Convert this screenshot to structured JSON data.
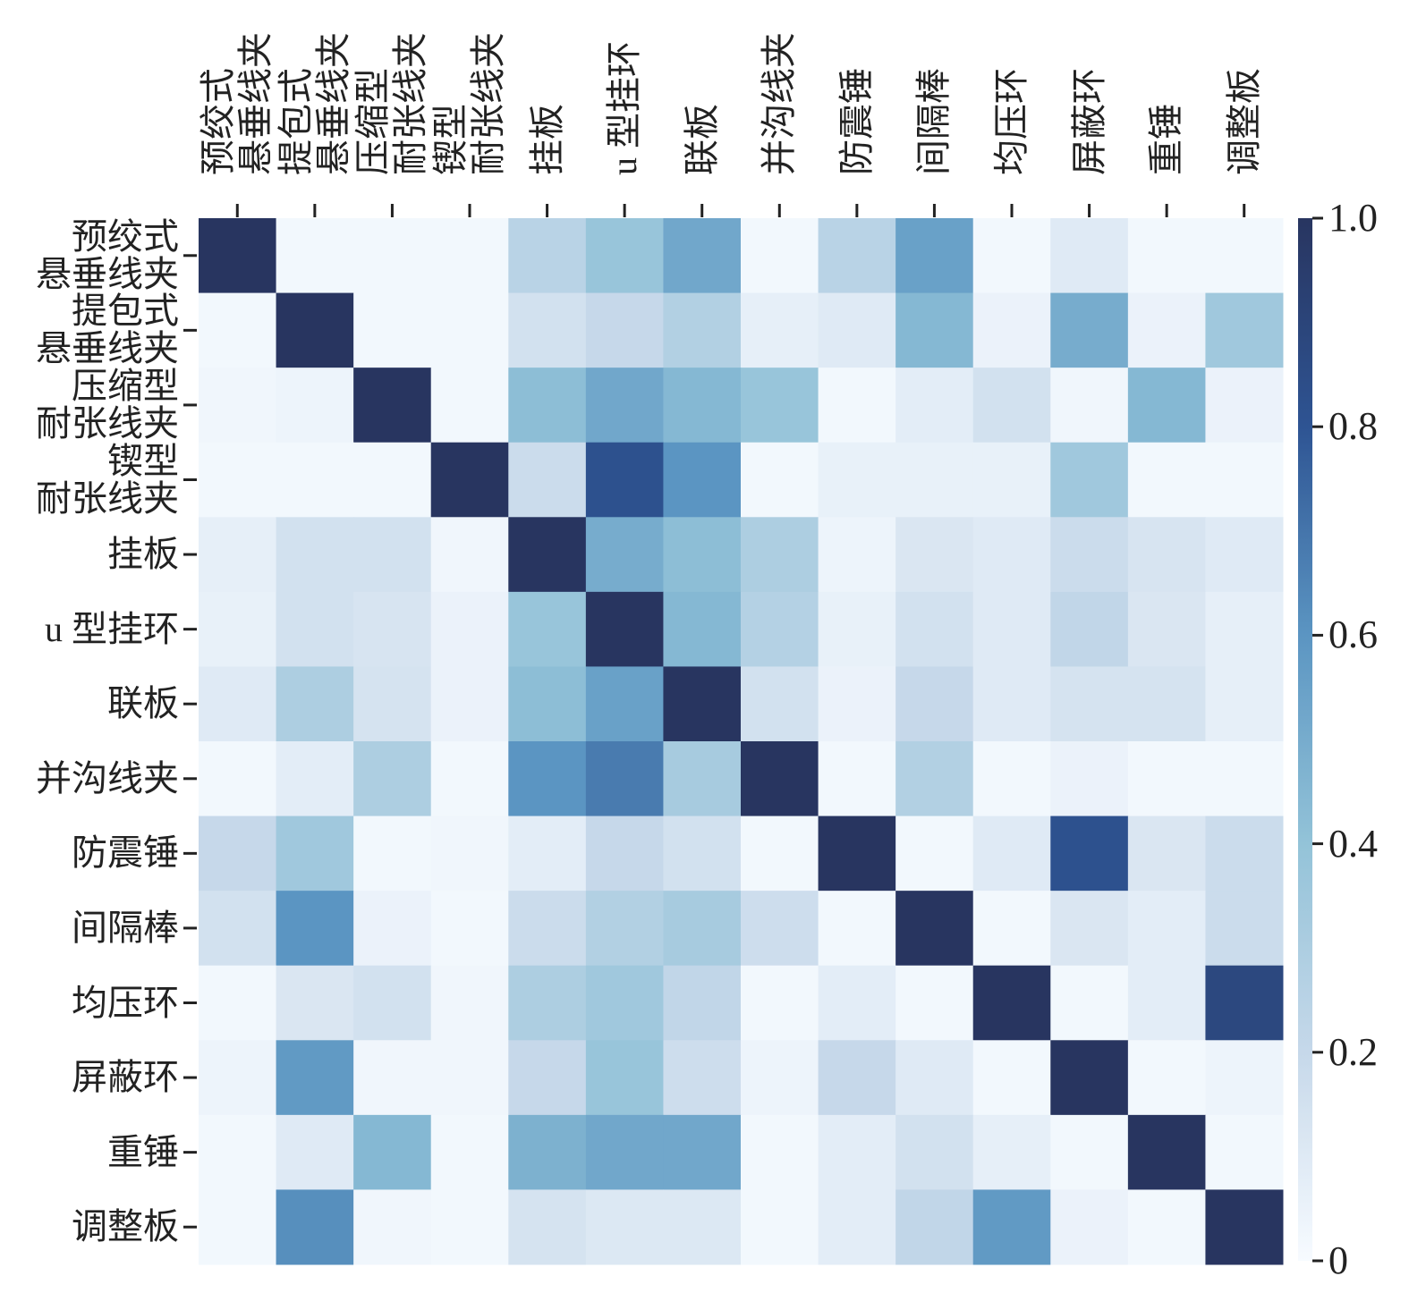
{
  "chart_data": {
    "type": "heatmap",
    "categories": [
      "预绞式\n悬垂线夹",
      "提包式\n悬垂线夹",
      "压缩型\n耐张线夹",
      "锲型\n耐张线夹",
      "挂板",
      "u 型挂环",
      "联板",
      "并沟线夹",
      "防震锤",
      "间隔棒",
      "均压环",
      "屏蔽环",
      "重锤",
      "调整板"
    ],
    "values": [
      [
        1,
        0.02,
        0.02,
        0.02,
        0.25,
        0.38,
        0.52,
        0.02,
        0.25,
        0.55,
        0.02,
        0.1,
        0.02,
        0.02
      ],
      [
        0.02,
        1,
        0.02,
        0.02,
        0.15,
        0.2,
        0.28,
        0.07,
        0.1,
        0.45,
        0.05,
        0.5,
        0.05,
        0.35
      ],
      [
        0.03,
        0.04,
        1,
        0.02,
        0.42,
        0.52,
        0.45,
        0.38,
        0.02,
        0.08,
        0.15,
        0.03,
        0.45,
        0.05
      ],
      [
        0.02,
        0.02,
        0.02,
        1,
        0.18,
        0.82,
        0.6,
        0.02,
        0.06,
        0.06,
        0.06,
        0.35,
        0.02,
        0.02
      ],
      [
        0.07,
        0.15,
        0.15,
        0.03,
        1,
        0.5,
        0.42,
        0.3,
        0.04,
        0.12,
        0.1,
        0.18,
        0.13,
        0.1
      ],
      [
        0.06,
        0.15,
        0.13,
        0.05,
        0.38,
        1,
        0.45,
        0.27,
        0.06,
        0.15,
        0.1,
        0.22,
        0.12,
        0.07
      ],
      [
        0.1,
        0.3,
        0.14,
        0.05,
        0.42,
        0.55,
        1,
        0.15,
        0.05,
        0.2,
        0.1,
        0.14,
        0.14,
        0.07
      ],
      [
        0.02,
        0.08,
        0.3,
        0.02,
        0.6,
        0.68,
        0.32,
        1,
        0.02,
        0.28,
        0.02,
        0.05,
        0.02,
        0.02
      ],
      [
        0.2,
        0.35,
        0.02,
        0.03,
        0.08,
        0.2,
        0.15,
        0.02,
        1,
        0.02,
        0.1,
        0.82,
        0.12,
        0.18
      ],
      [
        0.15,
        0.6,
        0.05,
        0.02,
        0.18,
        0.28,
        0.32,
        0.17,
        0.02,
        1,
        0.02,
        0.12,
        0.08,
        0.18
      ],
      [
        0.02,
        0.12,
        0.15,
        0.03,
        0.3,
        0.35,
        0.22,
        0.02,
        0.08,
        0.02,
        1,
        0.02,
        0.08,
        0.88
      ],
      [
        0.04,
        0.58,
        0.03,
        0.03,
        0.2,
        0.38,
        0.17,
        0.04,
        0.2,
        0.1,
        0.02,
        1,
        0.02,
        0.04
      ],
      [
        0.02,
        0.1,
        0.45,
        0.02,
        0.48,
        0.52,
        0.52,
        0.02,
        0.08,
        0.15,
        0.07,
        0.02,
        1,
        0.02
      ],
      [
        0.02,
        0.62,
        0.03,
        0.02,
        0.14,
        0.11,
        0.11,
        0.02,
        0.08,
        0.22,
        0.58,
        0.05,
        0.02,
        1
      ]
    ],
    "colormap": [
      "#f7fbff",
      "#c6d8ea",
      "#93c3d8",
      "#5b95c2",
      "#2e5493",
      "#283560"
    ],
    "clim": [
      0,
      1
    ],
    "colorbar_ticks": [
      0,
      0.2,
      0.4,
      0.6,
      0.8,
      {
        "value": 1,
        "label": "1.0"
      }
    ]
  }
}
